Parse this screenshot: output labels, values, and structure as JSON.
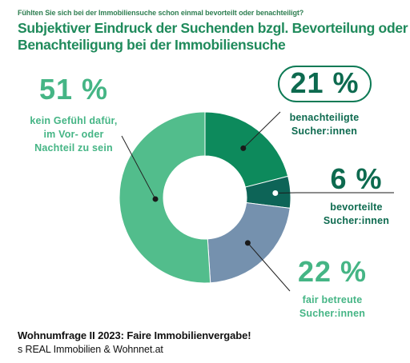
{
  "header": {
    "question": "Fühlten Sie sich bei der Immobiliensuche schon einmal bevorteilt oder benachteiligt?",
    "title_line1": "Subjektiver Eindruck der Suchenden bzgl. Bevorteilung oder",
    "title_line2": "Benachteiligung bei der Immobiliensuche"
  },
  "chart_data": {
    "type": "pie",
    "style": "donut",
    "unit": "%",
    "slices": [
      {
        "value_label": "21 %",
        "value": 21,
        "label_line1": "benachteiligte",
        "label_line2": "Sucher:innen",
        "color": "#0d8a5c"
      },
      {
        "value_label": "6 %",
        "value": 6,
        "label_line1": "bevorteilte",
        "label_line2": "Sucher:innen",
        "color": "#0d6457"
      },
      {
        "value_label": "22 %",
        "value": 22,
        "label_line1": "fair betreute",
        "label_line2": "Sucher:innen",
        "color": "#7591ae"
      },
      {
        "value_label": "51 %",
        "value": 51,
        "label_line1": "kein Gefühl dafür,",
        "label_line2": "im Vor- oder",
        "label_line3": "Nachteil zu sein",
        "color": "#52bd8c"
      }
    ]
  },
  "colors": {
    "title": "#1f8a5b",
    "leader_line": "#222222",
    "pct_dark": "#0d6a4f",
    "pct_light": "#45b585"
  },
  "footer": {
    "title": "Wohnumfrage II 2023: Faire Immobilienvergabe!",
    "source": "s REAL Immobilien & Wohnnet.at"
  }
}
